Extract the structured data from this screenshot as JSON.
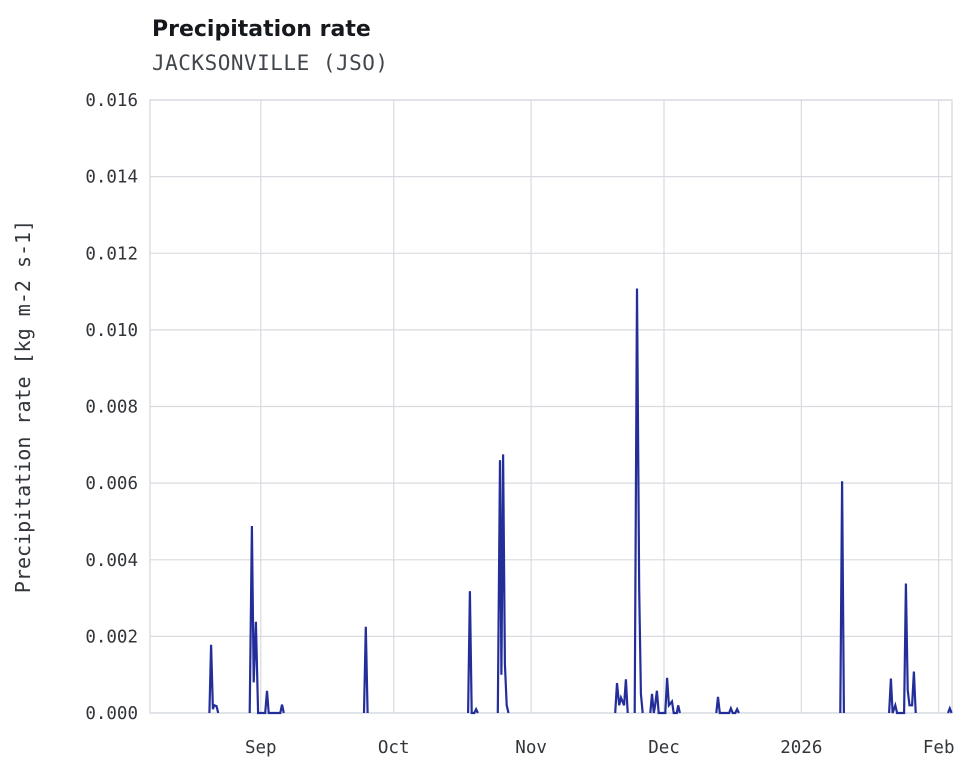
{
  "chart_data": {
    "type": "line",
    "title": "Precipitation rate",
    "subtitle": "JACKSONVILLE (JSO)",
    "ylabel": "Precipitation rate [kg m-2 s-1]",
    "xlabel": "",
    "grid": true,
    "legend": false,
    "x_axis": {
      "unit": "days since 2025-08-07",
      "min": 0,
      "max": 181,
      "ticks": [
        {
          "pos": 25,
          "label": "Sep"
        },
        {
          "pos": 55,
          "label": "Oct"
        },
        {
          "pos": 86,
          "label": "Nov"
        },
        {
          "pos": 116,
          "label": "Dec"
        },
        {
          "pos": 147,
          "label": "2026"
        },
        {
          "pos": 178,
          "label": "Feb"
        }
      ]
    },
    "y_axis": {
      "min": 0,
      "max": 0.016,
      "ticks": [
        0,
        0.002,
        0.004,
        0.006,
        0.008,
        0.01,
        0.012,
        0.014,
        0.016
      ],
      "tick_labels": [
        "0.000",
        "0.002",
        "0.004",
        "0.006",
        "0.008",
        "0.010",
        "0.012",
        "0.014",
        "0.016"
      ]
    },
    "colors": {
      "line": "#232e99",
      "grid": "#d8dbe0",
      "border": "#d8dbe0",
      "text": "#32363b",
      "title": "#15181c",
      "subtitle": "#41464d"
    },
    "series": [
      {
        "name": "precipitation rate",
        "segments": [
          [
            [
              13.4,
              0
            ],
            [
              13.8,
              0.00178
            ],
            [
              14.2,
              0.0001
            ],
            [
              14.5,
              0.0002
            ],
            [
              15.0,
              0.00018
            ],
            [
              15.4,
              0
            ]
          ],
          [
            [
              22.5,
              0
            ],
            [
              23.0,
              0.00488
            ],
            [
              23.4,
              0.0008
            ],
            [
              23.9,
              0.00238
            ],
            [
              24.4,
              0
            ],
            [
              26.0,
              0
            ],
            [
              26.4,
              0.00058
            ],
            [
              26.8,
              0
            ],
            [
              29.4,
              0
            ],
            [
              29.8,
              0.00022
            ],
            [
              30.2,
              0
            ]
          ],
          [
            [
              48.3,
              0
            ],
            [
              48.7,
              0.00225
            ],
            [
              49.1,
              0
            ]
          ],
          [
            [
              71.8,
              0
            ],
            [
              72.2,
              0.00318
            ],
            [
              72.6,
              0
            ],
            [
              73.2,
              0
            ],
            [
              73.6,
              0.0001
            ],
            [
              74.0,
              0
            ]
          ],
          [
            [
              78.5,
              0
            ],
            [
              79.0,
              0.0066
            ],
            [
              79.3,
              0.001
            ],
            [
              79.7,
              0.00675
            ],
            [
              80.1,
              0.00128
            ],
            [
              80.5,
              0.0002
            ],
            [
              80.9,
              0
            ]
          ],
          [
            [
              105.0,
              0
            ],
            [
              105.4,
              0.00078
            ],
            [
              105.9,
              0.0002
            ],
            [
              106.3,
              0.0004
            ],
            [
              107.0,
              0.0002
            ],
            [
              107.4,
              0.00088
            ],
            [
              107.8,
              0
            ]
          ],
          [
            [
              109.4,
              0
            ],
            [
              109.9,
              0.01108
            ],
            [
              110.4,
              0.0032
            ],
            [
              110.8,
              0.0005
            ],
            [
              111.2,
              0
            ]
          ],
          [
            [
              112.9,
              0
            ],
            [
              113.3,
              0.0005
            ],
            [
              113.7,
              0
            ],
            [
              114.0,
              0.0002
            ],
            [
              114.4,
              0.00058
            ],
            [
              114.8,
              0
            ],
            [
              116.3,
              0
            ],
            [
              116.7,
              0.00092
            ],
            [
              117.1,
              0.0002
            ],
            [
              117.8,
              0.0003
            ],
            [
              118.2,
              0
            ],
            [
              118.9,
              0
            ],
            [
              119.2,
              0.0002
            ],
            [
              119.6,
              0
            ]
          ],
          [
            [
              127.8,
              0
            ],
            [
              128.2,
              0.00042
            ],
            [
              128.6,
              0
            ],
            [
              130.7,
              0
            ],
            [
              131.1,
              0.00012
            ],
            [
              131.5,
              0
            ],
            [
              132.1,
              0
            ],
            [
              132.5,
              0.0001
            ],
            [
              132.9,
              0
            ]
          ],
          [
            [
              155.8,
              0
            ],
            [
              156.2,
              0.00605
            ],
            [
              156.6,
              0
            ]
          ],
          [
            [
              166.8,
              0
            ],
            [
              167.2,
              0.0009
            ],
            [
              167.6,
              0
            ],
            [
              168.2,
              0.0002
            ],
            [
              168.6,
              0
            ],
            [
              170.2,
              0
            ],
            [
              170.6,
              0.00338
            ],
            [
              171.0,
              0.0006
            ],
            [
              171.4,
              0.0002
            ],
            [
              172.0,
              0.0002
            ],
            [
              172.4,
              0.00108
            ],
            [
              172.8,
              0
            ]
          ],
          [
            [
              180.1,
              0
            ],
            [
              180.5,
              0.00012
            ],
            [
              180.9,
              0
            ]
          ]
        ]
      }
    ]
  }
}
